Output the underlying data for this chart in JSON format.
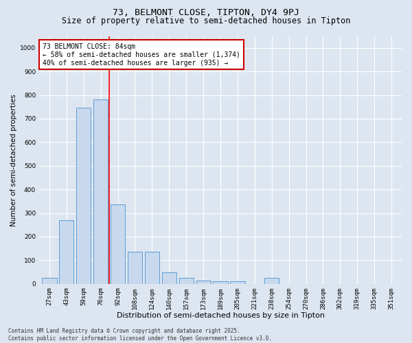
{
  "title1": "73, BELMONT CLOSE, TIPTON, DY4 9PJ",
  "title2": "Size of property relative to semi-detached houses in Tipton",
  "xlabel": "Distribution of semi-detached houses by size in Tipton",
  "ylabel": "Number of semi-detached properties",
  "categories": [
    "27sqm",
    "43sqm",
    "59sqm",
    "76sqm",
    "92sqm",
    "108sqm",
    "124sqm",
    "140sqm",
    "157sqm",
    "173sqm",
    "189sqm",
    "205sqm",
    "221sqm",
    "238sqm",
    "254sqm",
    "270sqm",
    "286sqm",
    "302sqm",
    "319sqm",
    "335sqm",
    "351sqm"
  ],
  "values": [
    25,
    270,
    745,
    780,
    335,
    135,
    135,
    50,
    25,
    15,
    10,
    10,
    0,
    25,
    0,
    0,
    0,
    0,
    0,
    0,
    0
  ],
  "bar_color": "#c8d9ee",
  "bar_edge_color": "#5b9bd5",
  "red_line_x": 3.5,
  "annotation_text": "73 BELMONT CLOSE: 84sqm\n← 58% of semi-detached houses are smaller (1,374)\n40% of semi-detached houses are larger (935) →",
  "annotation_box_color": "#ffffff",
  "annotation_box_edge": "#cc0000",
  "ylim": [
    0,
    1050
  ],
  "yticks": [
    0,
    100,
    200,
    300,
    400,
    500,
    600,
    700,
    800,
    900,
    1000
  ],
  "bg_color": "#dde6f0",
  "footer": "Contains HM Land Registry data © Crown copyright and database right 2025.\nContains public sector information licensed under the Open Government Licence v3.0.",
  "title1_fontsize": 9.5,
  "title2_fontsize": 8.5,
  "xlabel_fontsize": 8,
  "ylabel_fontsize": 7.5,
  "tick_fontsize": 6.5,
  "annot_fontsize": 7,
  "footer_fontsize": 5.5
}
